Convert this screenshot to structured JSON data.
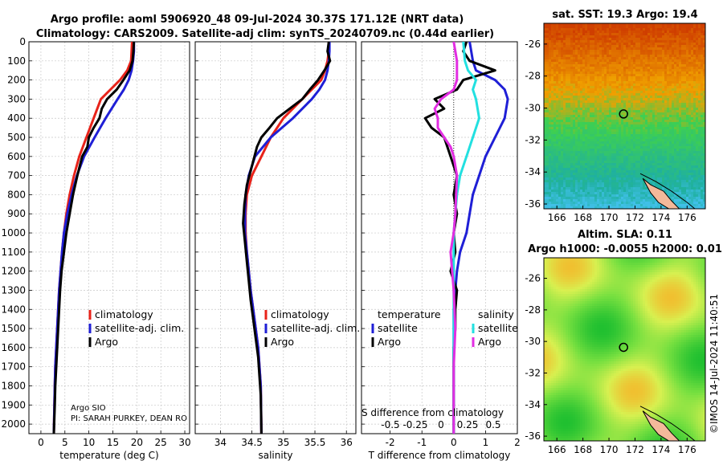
{
  "header": {
    "line1": "Argo profile: aoml 5906920_48 09-Jul-2024 30.37S 171.12E (NRT data)",
    "line2": "Climatology: CARS2009. Satellite-adj clim: synTS_20240709.nc (0.44d earlier)"
  },
  "side": {
    "stamp": "©IMOS 14-Jul-2024 11:40:51"
  },
  "credits": {
    "line1": "Argo SIO",
    "line2": "PI: SARAH PURKEY, DEAN RO"
  },
  "chart_data": [
    {
      "id": "temperature",
      "type": "line",
      "xlabel": "temperature (deg C)",
      "ylabel": "",
      "xlim": [
        -2.5,
        31
      ],
      "ylim": [
        2050,
        0
      ],
      "xticks": [
        0,
        5,
        10,
        15,
        20,
        25,
        30
      ],
      "yticks": [
        0,
        100,
        200,
        300,
        400,
        500,
        600,
        700,
        800,
        900,
        1000,
        1100,
        1200,
        1300,
        1400,
        1500,
        1600,
        1700,
        1800,
        1900,
        2000
      ],
      "legend": [
        "climatology",
        "satellite-adj. clim.",
        "Argo"
      ],
      "series": [
        {
          "name": "climatology",
          "color": "#e8231a",
          "x": [
            19.0,
            18.9,
            18.8,
            18.0,
            16.5,
            14.5,
            12.5,
            11.0,
            9.5,
            8.0,
            6.9,
            6.0,
            5.3,
            4.8,
            4.4,
            4.1,
            3.8,
            3.6,
            3.4,
            3.2,
            3.0,
            2.9,
            2.7
          ],
          "y": [
            0,
            50,
            100,
            150,
            200,
            250,
            300,
            400,
            500,
            600,
            700,
            800,
            900,
            1000,
            1100,
            1200,
            1300,
            1400,
            1500,
            1600,
            1700,
            1800,
            2050
          ]
        },
        {
          "name": "satellite-adj. clim.",
          "color": "#1f1fd6",
          "x": [
            19.4,
            19.4,
            19.2,
            18.9,
            18.3,
            17.3,
            16.0,
            13.5,
            11.2,
            9.0,
            7.5,
            6.4,
            5.5,
            4.8,
            4.4,
            4.1,
            3.8,
            3.6,
            3.4,
            3.2,
            3.0,
            2.9,
            2.7
          ],
          "y": [
            0,
            50,
            100,
            150,
            200,
            250,
            300,
            400,
            500,
            600,
            700,
            800,
            900,
            1000,
            1100,
            1200,
            1300,
            1400,
            1500,
            1600,
            1700,
            1800,
            2050
          ]
        },
        {
          "name": "Argo",
          "color": "#000000",
          "x": [
            19.4,
            19.3,
            19.1,
            18.5,
            17.2,
            15.8,
            13.8,
            12.7,
            12.2,
            11.0,
            10.0,
            9.7,
            8.6,
            7.6,
            6.7,
            6.0,
            5.3,
            4.8,
            4.3,
            4.0,
            3.8,
            3.6,
            3.4,
            3.2,
            3.0,
            2.9,
            2.7
          ],
          "y": [
            0,
            50,
            100,
            150,
            200,
            250,
            300,
            350,
            400,
            450,
            500,
            550,
            600,
            700,
            800,
            900,
            1000,
            1100,
            1200,
            1300,
            1400,
            1500,
            1600,
            1700,
            1800,
            1900,
            2050
          ]
        }
      ]
    },
    {
      "id": "salinity",
      "type": "line",
      "xlabel": "salinity",
      "ylabel": "",
      "xlim": [
        33.6,
        36.15
      ],
      "ylim": [
        2050,
        0
      ],
      "xticks": [
        34,
        34.5,
        35,
        35.5,
        36
      ],
      "legend": [
        "climatology",
        "satellite-adj. clim.",
        "Argo"
      ],
      "series": [
        {
          "name": "climatology",
          "color": "#e8231a",
          "x": [
            35.72,
            35.72,
            35.7,
            35.66,
            35.6,
            35.45,
            35.3,
            35.0,
            34.8,
            34.65,
            34.5,
            34.42,
            34.4,
            34.4,
            34.42,
            34.45,
            34.48,
            34.52,
            34.56,
            34.6,
            34.62,
            34.64,
            34.65
          ],
          "y": [
            0,
            50,
            100,
            150,
            200,
            250,
            300,
            400,
            500,
            600,
            700,
            800,
            900,
            1000,
            1100,
            1200,
            1300,
            1400,
            1500,
            1600,
            1700,
            1800,
            2050
          ]
        },
        {
          "name": "satellite-adj. clim.",
          "color": "#1f1fd6",
          "x": [
            35.73,
            35.73,
            35.72,
            35.7,
            35.66,
            35.57,
            35.45,
            35.15,
            34.8,
            34.55,
            34.45,
            34.4,
            34.39,
            34.39,
            34.42,
            34.45,
            34.48,
            34.52,
            34.56,
            34.6,
            34.62,
            34.64,
            34.65
          ],
          "y": [
            0,
            50,
            100,
            150,
            200,
            250,
            300,
            400,
            500,
            600,
            700,
            800,
            900,
            1000,
            1100,
            1200,
            1300,
            1400,
            1500,
            1600,
            1700,
            1800,
            2050
          ]
        },
        {
          "name": "Argo",
          "color": "#000000",
          "x": [
            35.72,
            35.7,
            35.74,
            35.65,
            35.55,
            35.42,
            35.3,
            35.1,
            34.9,
            34.78,
            34.65,
            34.58,
            34.5,
            34.42,
            34.38,
            34.36,
            34.39,
            34.42,
            34.45,
            34.48,
            34.52,
            34.56,
            34.6,
            34.62,
            34.64,
            34.65
          ],
          "y": [
            0,
            50,
            100,
            150,
            200,
            250,
            300,
            350,
            400,
            450,
            500,
            550,
            650,
            750,
            850,
            950,
            1050,
            1150,
            1250,
            1350,
            1450,
            1550,
            1650,
            1750,
            1850,
            2050
          ]
        }
      ]
    },
    {
      "id": "difference",
      "type": "line",
      "xlabel": "T difference from climatology",
      "ylabel": "",
      "xlim": [
        -2.9,
        2.0
      ],
      "ylim": [
        2050,
        0
      ],
      "xticks": [
        -2,
        -1,
        0,
        1,
        2
      ],
      "top_label": "S difference from climatology",
      "top_ticks": [
        "-0.5",
        "-0.25",
        "0",
        "0.25",
        "0.5"
      ],
      "legend_left_title": "temperature",
      "legend_right_title": "salinity",
      "legend_left": [
        "satellite",
        "Argo"
      ],
      "legend_right": [
        "satellite",
        "Argo"
      ],
      "series": [
        {
          "name": "T satellite",
          "color": "#1f1fd6",
          "x": [
            0.5,
            0.6,
            0.7,
            1.3,
            1.6,
            1.7,
            1.6,
            1.3,
            1.0,
            0.8,
            0.6,
            0.5,
            0.4,
            0.2,
            0.1,
            0.05,
            0,
            0,
            0,
            0,
            0,
            0
          ],
          "y": [
            0,
            100,
            150,
            200,
            250,
            300,
            400,
            500,
            600,
            700,
            800,
            900,
            1000,
            1100,
            1200,
            1300,
            1400,
            1500,
            1600,
            1800,
            2000,
            2050
          ]
        },
        {
          "name": "T Argo",
          "color": "#000000",
          "x": [
            0.4,
            0.3,
            0.5,
            1.3,
            0.3,
            0.1,
            -0.6,
            -0.3,
            -0.9,
            -0.7,
            -0.3,
            -0.2,
            -0.1,
            0.1,
            0,
            0.1,
            0,
            0.05,
            -0.1,
            0.1,
            0.05,
            0.05,
            0,
            0
          ],
          "y": [
            0,
            50,
            100,
            150,
            200,
            250,
            300,
            350,
            400,
            450,
            500,
            550,
            600,
            700,
            800,
            900,
            1000,
            1100,
            1200,
            1300,
            1400,
            1500,
            1600,
            2050
          ]
        },
        {
          "name": "S satellite",
          "color": "#22e0e0",
          "x": [
            0.3,
            0.35,
            0.45,
            0.7,
            0.6,
            0.7,
            0.8,
            0.6,
            0.4,
            0.2,
            0.1,
            0.05,
            0,
            0,
            0,
            0
          ],
          "y": [
            0,
            100,
            150,
            200,
            250,
            300,
            400,
            500,
            600,
            700,
            800,
            900,
            1000,
            1200,
            1500,
            2050
          ]
        },
        {
          "name": "S Argo",
          "color": "#e22ee2",
          "x": [
            0,
            0.05,
            0.1,
            0.1,
            0,
            -0.4,
            -0.6,
            -0.5,
            -0.5,
            -0.3,
            -0.1,
            0,
            0.1,
            0.05,
            0,
            -0.1,
            0,
            0.05,
            0,
            0
          ],
          "y": [
            0,
            50,
            100,
            200,
            250,
            300,
            350,
            400,
            450,
            500,
            550,
            600,
            700,
            900,
            1000,
            1100,
            1300,
            1500,
            1700,
            2050
          ]
        }
      ]
    },
    {
      "id": "sst-map",
      "type": "heatmap",
      "title": "sat. SST: 19.3 Argo: 19.4",
      "xticks": [
        166,
        168,
        170,
        172,
        174,
        176
      ],
      "yticks": [
        -26,
        -28,
        -30,
        -32,
        -34,
        -36
      ],
      "xlim": [
        165,
        177.4
      ],
      "ylim": [
        -36.3,
        -24.7
      ],
      "argo_position": [
        171.12,
        -30.37
      ],
      "sst_range_color": [
        "#cf3e00",
        "#f0a000",
        "#3ed050",
        "#40c0e8"
      ]
    },
    {
      "id": "sla-map",
      "type": "heatmap",
      "title": "Altim. SLA: 0.11",
      "title2": "Argo h1000: -0.0055 h2000: 0.01",
      "xticks": [
        166,
        168,
        170,
        172,
        174,
        176
      ],
      "yticks": [
        -26,
        -28,
        -30,
        -32,
        -34,
        -36
      ],
      "xlim": [
        165,
        177.4
      ],
      "ylim": [
        -36.3,
        -24.7
      ],
      "argo_position": [
        171.12,
        -30.37
      ],
      "sla_color": [
        "#20c030",
        "#78e040",
        "#d8f050",
        "#f0c030"
      ]
    }
  ]
}
